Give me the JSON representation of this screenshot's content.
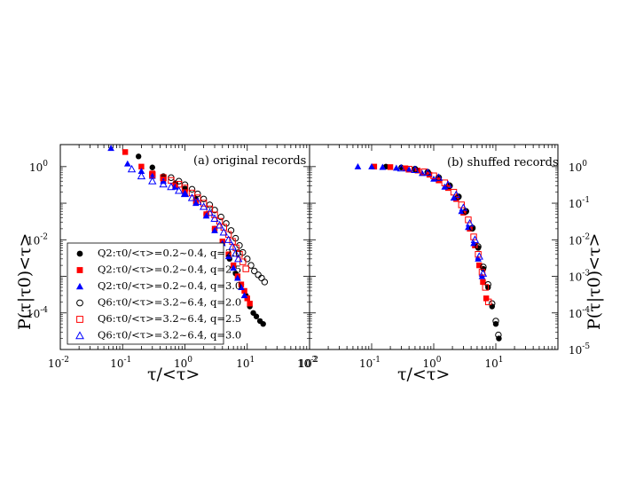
{
  "chart_data": [
    {
      "type": "scatter",
      "panel": "a",
      "title": "(a) original records",
      "xlabel": "τ/<τ>",
      "ylabel": "P(τ|τ0)<τ>",
      "xscale": "log",
      "yscale": "log",
      "xlim": [
        0.01,
        100
      ],
      "ylim": [
        1e-05,
        4
      ],
      "x_tick_labels": [
        {
          "value": 0.01,
          "base": "10",
          "exp": "-2"
        },
        {
          "value": 0.1,
          "base": "10",
          "exp": "-1"
        },
        {
          "value": 1,
          "base": "10",
          "exp": "0"
        },
        {
          "value": 10,
          "base": "10",
          "exp": "1"
        },
        {
          "value": 100,
          "base": "10",
          "exp": "2"
        }
      ],
      "y_tick_labels": [
        {
          "value": 1,
          "base": "10",
          "exp": "0"
        },
        {
          "value": 0.01,
          "base": "10",
          "exp": "-2"
        },
        {
          "value": 0.0001,
          "base": "10",
          "exp": "-4"
        }
      ],
      "legend_position": "bottom-left",
      "series": [
        {
          "name": "Q2:τ0/<τ>=0.2~0.4, q=2.0",
          "label": "Q2:τ0/<τ>=0.2~0.4, q=2.0",
          "marker": "circle",
          "filled": true,
          "color": "#000000",
          "x": [
            0.18,
            0.3,
            0.45,
            0.7,
            1.0,
            1.5,
            2.2,
            3.0,
            4.0,
            5.2,
            6.5,
            8.0,
            9.5,
            11,
            12.5,
            14,
            16,
            18
          ],
          "y": [
            1.9,
            0.95,
            0.55,
            0.35,
            0.25,
            0.13,
            0.05,
            0.02,
            0.008,
            0.003,
            0.0012,
            0.0006,
            0.0003,
            0.00015,
            0.0001,
            8e-05,
            6e-05,
            5e-05
          ]
        },
        {
          "name": "Q2:τ0/<τ>=0.2~0.4, q=2.5",
          "label": "Q2:τ0/<τ>=0.2~0.4, q=2.5",
          "marker": "square",
          "filled": true,
          "color": "#ff0000",
          "x": [
            0.11,
            0.2,
            0.3,
            0.45,
            0.7,
            1.0,
            1.5,
            2.2,
            3.0,
            4.0,
            5.0,
            6.0,
            7.0,
            8.0,
            9.0,
            10.0,
            11.0
          ],
          "y": [
            2.5,
            1.0,
            0.65,
            0.45,
            0.3,
            0.2,
            0.11,
            0.05,
            0.02,
            0.009,
            0.004,
            0.002,
            0.001,
            0.0006,
            0.0004,
            0.00025,
            0.00018
          ]
        },
        {
          "name": "Q2:τ0/<τ>=0.2~0.4, q=3.0",
          "label": "Q2:τ0/<τ>=0.2~0.4, q=3.0",
          "marker": "triangle",
          "filled": true,
          "color": "#0000ff",
          "x": [
            0.065,
            0.12,
            0.2,
            0.3,
            0.45,
            0.7,
            1.0,
            1.5,
            2.2,
            3.0,
            4.0,
            5.0,
            6.0,
            7.0,
            8.0,
            9.0
          ],
          "y": [
            3.2,
            1.2,
            0.75,
            0.55,
            0.4,
            0.28,
            0.18,
            0.1,
            0.045,
            0.018,
            0.008,
            0.0035,
            0.0017,
            0.0009,
            0.0005,
            0.0003
          ]
        },
        {
          "name": "Q6:τ0/<τ>=3.2~6.4, q=2.0",
          "label": "Q6:τ0/<τ>=3.2~6.4, q=2.0",
          "marker": "circle",
          "filled": false,
          "color": "#000000",
          "x": [
            0.6,
            0.8,
            1.0,
            1.3,
            1.6,
            2.0,
            2.5,
            3.0,
            3.8,
            4.6,
            5.5,
            6.5,
            7.5,
            8.5,
            10,
            11.5,
            13,
            15,
            17,
            19
          ],
          "y": [
            0.5,
            0.4,
            0.32,
            0.24,
            0.18,
            0.13,
            0.09,
            0.065,
            0.042,
            0.028,
            0.018,
            0.011,
            0.007,
            0.0045,
            0.003,
            0.002,
            0.0014,
            0.0011,
            0.0009,
            0.0007
          ]
        },
        {
          "name": "Q6:τ0/<τ>=3.2~6.4, q=2.5",
          "label": "Q6:τ0/<τ>=3.2~6.4, q=2.5",
          "marker": "square",
          "filled": false,
          "color": "#ff0000",
          "x": [
            0.3,
            0.45,
            0.6,
            0.8,
            1.0,
            1.3,
            1.6,
            2.0,
            2.5,
            3.0,
            3.6,
            4.2,
            5.0,
            5.8,
            6.6,
            7.5,
            8.5,
            9.5
          ],
          "y": [
            0.6,
            0.5,
            0.42,
            0.33,
            0.26,
            0.19,
            0.14,
            0.1,
            0.07,
            0.048,
            0.032,
            0.022,
            0.014,
            0.009,
            0.006,
            0.004,
            0.0025,
            0.0016
          ]
        },
        {
          "name": "Q6:τ0/<τ>=3.2~6.4, q=3.0",
          "label": "Q6:τ0/<τ>=3.2~6.4, q=3.0",
          "marker": "triangle",
          "filled": false,
          "color": "#0000ff",
          "x": [
            0.14,
            0.2,
            0.3,
            0.45,
            0.6,
            0.8,
            1.0,
            1.3,
            1.6,
            2.0,
            2.5,
            3.0,
            3.6,
            4.2,
            5.0,
            5.8,
            6.5,
            7.2
          ],
          "y": [
            0.85,
            0.55,
            0.4,
            0.33,
            0.28,
            0.22,
            0.18,
            0.14,
            0.11,
            0.08,
            0.055,
            0.038,
            0.025,
            0.016,
            0.01,
            0.0065,
            0.0042,
            0.003
          ]
        }
      ]
    },
    {
      "type": "scatter",
      "panel": "b",
      "title": "(b) shuffed records",
      "xlabel": "τ/<τ>",
      "ylabel": "P(τ|τ0)<τ>",
      "xscale": "log",
      "yscale": "log",
      "xlim": [
        0.01,
        100
      ],
      "ylim": [
        1e-05,
        4
      ],
      "x_tick_labels": [
        {
          "value": 0.01,
          "base": "10",
          "exp": "-2"
        },
        {
          "value": 0.1,
          "base": "10",
          "exp": "-1"
        },
        {
          "value": 1,
          "base": "10",
          "exp": "0"
        },
        {
          "value": 10,
          "base": "10",
          "exp": "1"
        }
      ],
      "y_tick_labels": [
        {
          "value": 1,
          "base": "10",
          "exp": "0"
        },
        {
          "value": 0.1,
          "base": "10",
          "exp": "-1"
        },
        {
          "value": 0.01,
          "base": "10",
          "exp": "-2"
        },
        {
          "value": 0.001,
          "base": "10",
          "exp": "-3"
        },
        {
          "value": 0.0001,
          "base": "10",
          "exp": "-4"
        },
        {
          "value": 1e-05,
          "base": "10",
          "exp": "-5"
        }
      ],
      "series": [
        {
          "name": "Q2 q=2.0",
          "marker": "circle",
          "filled": true,
          "color": "#000000",
          "x": [
            0.17,
            0.3,
            0.5,
            0.8,
            1.2,
            1.8,
            2.5,
            3.3,
            4.2,
            5.2,
            6.3,
            7.5,
            8.7,
            10.0,
            11.2
          ],
          "y": [
            1.0,
            0.95,
            0.85,
            0.7,
            0.5,
            0.3,
            0.15,
            0.06,
            0.02,
            0.006,
            0.0016,
            0.0005,
            0.00015,
            5e-05,
            2e-05
          ]
        },
        {
          "name": "Q2 q=2.5",
          "marker": "square",
          "filled": true,
          "color": "#ff0000",
          "x": [
            0.11,
            0.2,
            0.35,
            0.55,
            0.85,
            1.2,
            1.7,
            2.3,
            3.0,
            3.8,
            4.6,
            5.4,
            6.2,
            7.0
          ],
          "y": [
            1.0,
            0.97,
            0.9,
            0.78,
            0.6,
            0.42,
            0.26,
            0.13,
            0.055,
            0.02,
            0.007,
            0.002,
            0.0007,
            0.00025
          ]
        },
        {
          "name": "Q2 q=3.0",
          "marker": "triangle",
          "filled": true,
          "color": "#0000ff",
          "x": [
            0.06,
            0.1,
            0.15,
            0.25,
            0.4,
            0.65,
            1.0,
            1.5,
            2.1,
            2.8,
            3.6,
            4.4,
            5.2,
            6.0
          ],
          "y": [
            1.0,
            1.0,
            0.97,
            0.92,
            0.83,
            0.66,
            0.46,
            0.28,
            0.14,
            0.06,
            0.022,
            0.008,
            0.003,
            0.001
          ]
        },
        {
          "name": "Q6 q=2.0",
          "marker": "circle",
          "filled": false,
          "color": "#000000",
          "x": [
            0.5,
            0.8,
            1.2,
            1.8,
            2.5,
            3.3,
            4.2,
            5.2,
            6.3,
            7.5,
            8.7,
            10.0,
            11.0
          ],
          "y": [
            0.85,
            0.7,
            0.5,
            0.3,
            0.15,
            0.06,
            0.021,
            0.0065,
            0.0018,
            0.0006,
            0.00018,
            6e-05,
            2.5e-05
          ]
        },
        {
          "name": "Q6 q=2.5",
          "marker": "square",
          "filled": false,
          "color": "#ff0000",
          "x": [
            0.4,
            0.7,
            1.0,
            1.5,
            2.1,
            2.8,
            3.6,
            4.4,
            5.2,
            6.0,
            6.8,
            7.6
          ],
          "y": [
            0.85,
            0.72,
            0.56,
            0.36,
            0.2,
            0.09,
            0.035,
            0.012,
            0.004,
            0.0013,
            0.0005,
            0.0002
          ]
        },
        {
          "name": "Q6 q=3.0",
          "marker": "triangle",
          "filled": false,
          "color": "#0000ff",
          "x": [
            0.3,
            0.5,
            0.8,
            1.2,
            1.7,
            2.3,
            3.0,
            3.8,
            4.6,
            5.4,
            6.2
          ],
          "y": [
            0.9,
            0.82,
            0.68,
            0.5,
            0.32,
            0.17,
            0.075,
            0.028,
            0.01,
            0.0035,
            0.0012
          ]
        }
      ]
    }
  ]
}
